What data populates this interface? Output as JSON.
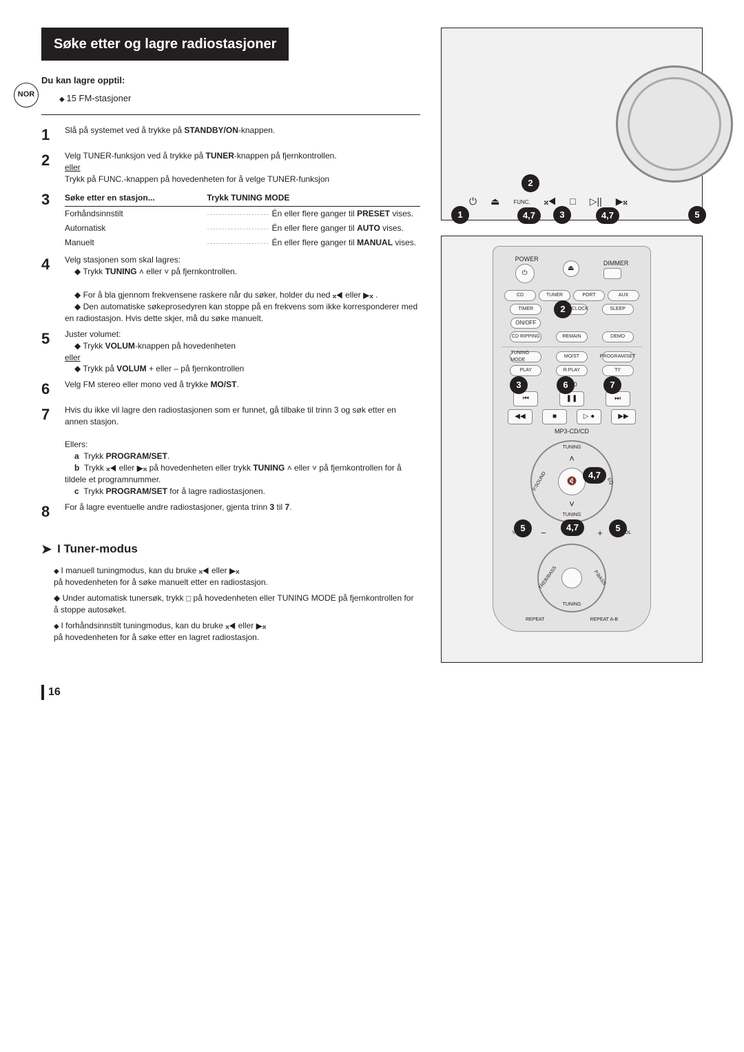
{
  "sidebar_badge": "NOR",
  "title": "Søke etter og lagre radiostasjoner",
  "intro_heading": "Du kan lagre opptil:",
  "intro_bullet": "15 FM-stasjoner",
  "step1": {
    "pre": "Slå på systemet ved å trykke på ",
    "bold": "STANDBY/ON",
    "post": "-knappen."
  },
  "step2": {
    "line1_pre": "Velg TUNER-funksjon ved å trykke på ",
    "line1_bold": "TUNER",
    "line1_post": "-knappen på fjernkontrollen.",
    "eller": "eller",
    "line2": "Trykk på FUNC.-knappen på hovedenheten for å velge TUNER-funksjon"
  },
  "step3": {
    "head_left": "Søke etter en stasjon...",
    "head_right": "Trykk TUNING MODE",
    "rows": [
      {
        "l": "Forhåndsinnstilt",
        "r_pre": "Én eller flere ganger til ",
        "r_bold": "PRESET",
        "r_post": " vises."
      },
      {
        "l": "Automatisk",
        "r_pre": "Én eller flere ganger til ",
        "r_bold": "AUTO",
        "r_post": " vises."
      },
      {
        "l": "Manuelt",
        "r_pre": "Én eller flere ganger til ",
        "r_bold": "MANUAL",
        "r_post": " vises."
      }
    ]
  },
  "step4": {
    "line1": "Velg stasjonen som skal lagres:",
    "sub1_pre": "Trykk ",
    "sub1_bold": "TUNING",
    "sub1_mid": " ",
    "sub1_post": " på fjernkontrollen.",
    "sub2a": "For å bla gjennom frekvensene raskere når du søker, holder du ned ",
    "sub2b": " eller ",
    "sub3": "Den automatiske søkeprosedyren kan stoppe på en frekvens som ikke korresponderer med en radiostasjon. Hvis dette skjer, må du søke manuelt."
  },
  "step5": {
    "line1": "Juster volumet:",
    "sub1_pre": "Trykk ",
    "sub1_bold": "VOLUM",
    "sub1_post": "-knappen på hovedenheten",
    "eller": "eller",
    "sub2_pre": "Trykk på ",
    "sub2_bold": "VOLUM",
    "sub2_post": " + eller – på fjernkontrollen"
  },
  "step6": {
    "pre": "Velg FM stereo eller mono ved å trykke ",
    "bold": "MO/ST",
    "post": "."
  },
  "step7": {
    "line1": "Hvis du ikke vil lagre den radiostasjonen som er funnet, gå tilbake til trinn 3 og søk etter en annen stasjon.",
    "ellers": "Ellers:",
    "a_pre": "Trykk ",
    "a_bold": "PROGRAM/SET",
    "a_post": ".",
    "b_pre": "Trykk ",
    "b_mid1": " eller ",
    "b_mid2": " på hovedenheten eller trykk ",
    "b_bold": "TUNING",
    "b_mid3": " eller ",
    "b_post": " på fjernkontrollen for å tildele et programnummer.",
    "c_pre": "Trykk ",
    "c_bold": "PROGRAM/SET",
    "c_post": " for å lagre radiostasjonen."
  },
  "step8": {
    "pre": "For å lagre eventuelle andre radiostasjoner, gjenta trinn ",
    "bold1": "3",
    "mid": " til ",
    "bold2": "7",
    "post": "."
  },
  "tuner_heading": "I Tuner-modus",
  "tuner_items": [
    {
      "pre": "I manuell tuningmodus, kan du bruke ",
      "post": " på hovedenheten for å søke manuelt etter en radiostasjon."
    },
    {
      "pre": "Under automatisk tunersøk, trykk ",
      "post": " på hovedenheten eller TUNING MODE på fjernkontrollen for å stoppe autosøket."
    },
    {
      "pre": "I forhåndsinnstilt tuningmodus, kan du bruke ",
      "post": " på hovedenheten for å søke etter en lagret radiostasjon."
    }
  ],
  "page_number": "16",
  "remote": {
    "power": "POWER",
    "dimmer": "DIMMER",
    "row2": [
      "CD",
      "TUNER",
      "PORT",
      "AUX"
    ],
    "row3": [
      "TIMER",
      "TIMER/CLOCK",
      "SLEEP"
    ],
    "row3b": "ON/OFF",
    "row4": [
      "CD RIPPING",
      "REMAIN",
      "DEMO"
    ],
    "row5": [
      "TUNING MODE",
      "MO/ST",
      "PROGRAM/SET"
    ],
    "row6": [
      "PLAY",
      "R.PLAY",
      "TY"
    ],
    "plus10": "+10",
    "mp3": "MP3-CD/CD",
    "ring": {
      "top": "TUNING",
      "left": "P.SOUND",
      "right": "EQ",
      "bottom": "TUNING"
    },
    "vol": "VOL",
    "mute": "MUTE",
    "bottom_ring": {
      "left": "TREB/BASS",
      "right": "P.BASS"
    },
    "footer": [
      "REPEAT",
      "REPEAT A-B"
    ]
  },
  "device_markers": {
    "d1": "1",
    "d2": "2",
    "d3": "3",
    "d47a": "4,7",
    "d47b": "4,7",
    "d5": "5"
  },
  "remote_markers": {
    "m2": "2",
    "m3": "3",
    "m6": "6",
    "m7": "7",
    "m47a": "4,7",
    "m47b": "4,7",
    "m5a": "5",
    "m5b": "5"
  },
  "icons": {
    "skip_back": "⏮",
    "skip_fwd": "⏭",
    "rw": "◀◀",
    "ff": "▶▶",
    "up": "˄",
    "down": "˅",
    "stop": "□",
    "eject": "⏏",
    "power": "⏻",
    "play": "▷",
    "pause": "▷||",
    "mute": "🔇",
    "prev_trk": "𝄪◀",
    "next_trk": "▶𝄪"
  },
  "colors": {
    "ink": "#231f20",
    "panel": "#f1f1f1",
    "btn": "#fafafa",
    "border": "#888888"
  }
}
